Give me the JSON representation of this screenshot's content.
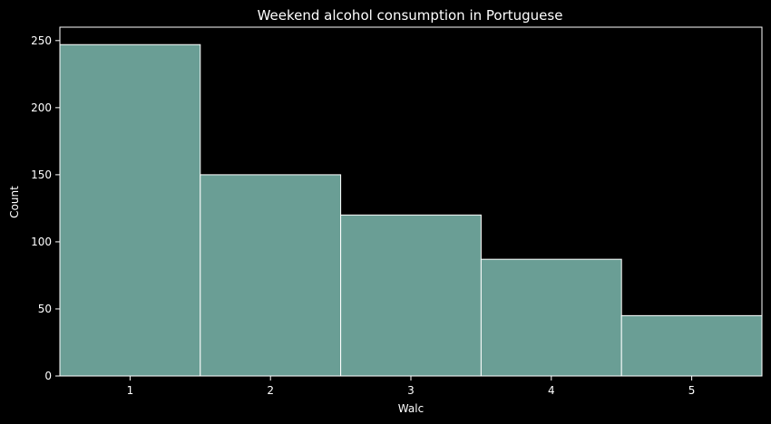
{
  "chart_data": {
    "type": "bar",
    "title": "Weekend alcohol consumption in Portuguese",
    "xlabel": "Walc",
    "ylabel": "Count",
    "categories": [
      "1",
      "2",
      "3",
      "4",
      "5"
    ],
    "values": [
      247,
      150,
      120,
      87,
      45
    ],
    "xlim": [
      0.5,
      5.5
    ],
    "ylim": [
      0,
      260
    ],
    "yticks": [
      0,
      50,
      100,
      150,
      200,
      250
    ],
    "grid": false,
    "legend": "none",
    "colors": {
      "background": "#000000",
      "bar_fill": "#6a9e95",
      "bar_edge": "#ffffff",
      "axis": "#ffffff",
      "text": "#ffffff"
    }
  }
}
